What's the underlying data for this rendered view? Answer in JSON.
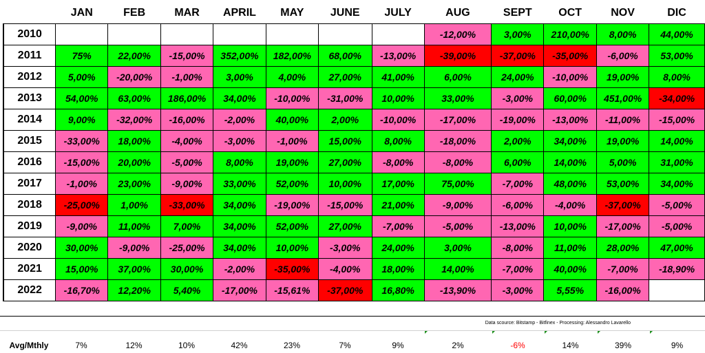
{
  "chart_data": {
    "type": "table",
    "columns": [
      "JAN",
      "FEB",
      "MAR",
      "APRIL",
      "MAY",
      "JUNE",
      "JULY",
      "AUG",
      "SEPT",
      "OCT",
      "NOV",
      "DIC"
    ],
    "rows": [
      {
        "year": "2010",
        "values": [
          "",
          "",
          "",
          "",
          "",
          "",
          "",
          "-12,00%",
          "3,00%",
          "210,00%",
          "8,00%",
          "44,00%"
        ]
      },
      {
        "year": "2011",
        "values": [
          "75%",
          "22,00%",
          "-15,00%",
          "352,00%",
          "182,00%",
          "68,00%",
          "-13,00%",
          "-39,00%",
          "-37,00%",
          "-35,00%",
          "-6,00%",
          "53,00%"
        ]
      },
      {
        "year": "2012",
        "values": [
          "5,00%",
          "-20,00%",
          "-1,00%",
          "3,00%",
          "4,00%",
          "27,00%",
          "41,00%",
          "6,00%",
          "24,00%",
          "-10,00%",
          "19,00%",
          "8,00%"
        ]
      },
      {
        "year": "2013",
        "values": [
          "54,00%",
          "63,00%",
          "186,00%",
          "34,00%",
          "-10,00%",
          "-31,00%",
          "10,00%",
          "33,00%",
          "-3,00%",
          "60,00%",
          "451,00%",
          "-34,00%"
        ]
      },
      {
        "year": "2014",
        "values": [
          "9,00%",
          "-32,00%",
          "-16,00%",
          "-2,00%",
          "40,00%",
          "2,00%",
          "-10,00%",
          "-17,00%",
          "-19,00%",
          "-13,00%",
          "-11,00%",
          "-15,00%"
        ]
      },
      {
        "year": "2015",
        "values": [
          "-33,00%",
          "18,00%",
          "-4,00%",
          "-3,00%",
          "-1,00%",
          "15,00%",
          "8,00%",
          "-18,00%",
          "2,00%",
          "34,00%",
          "19,00%",
          "14,00%"
        ]
      },
      {
        "year": "2016",
        "values": [
          "-15,00%",
          "20,00%",
          "-5,00%",
          "8,00%",
          "19,00%",
          "27,00%",
          "-8,00%",
          "-8,00%",
          "6,00%",
          "14,00%",
          "5,00%",
          "31,00%"
        ]
      },
      {
        "year": "2017",
        "values": [
          "-1,00%",
          "23,00%",
          "-9,00%",
          "33,00%",
          "52,00%",
          "10,00%",
          "17,00%",
          "75,00%",
          "-7,00%",
          "48,00%",
          "53,00%",
          "34,00%"
        ]
      },
      {
        "year": "2018",
        "values": [
          "-25,00%",
          "1,00%",
          "-33,00%",
          "34,00%",
          "-19,00%",
          "-15,00%",
          "21,00%",
          "-9,00%",
          "-6,00%",
          "-4,00%",
          "-37,00%",
          "-5,00%"
        ]
      },
      {
        "year": "2019",
        "values": [
          "-9,00%",
          "11,00%",
          "7,00%",
          "34,00%",
          "52,00%",
          "27,00%",
          "-7,00%",
          "-5,00%",
          "-13,00%",
          "10,00%",
          "-17,00%",
          "-5,00%"
        ]
      },
      {
        "year": "2020",
        "values": [
          "30,00%",
          "-9,00%",
          "-25,00%",
          "34,00%",
          "10,00%",
          "-3,00%",
          "24,00%",
          "3,00%",
          "-8,00%",
          "11,00%",
          "28,00%",
          "47,00%"
        ]
      },
      {
        "year": "2021",
        "values": [
          "15,00%",
          "37,00%",
          "30,00%",
          "-2,00%",
          "-35,00%",
          "-4,00%",
          "18,00%",
          "14,00%",
          "-7,00%",
          "40,00%",
          "-7,00%",
          "-18,90%"
        ]
      },
      {
        "year": "2022",
        "values": [
          "-16,70%",
          "12,20%",
          "5,40%",
          "-17,00%",
          "-15,61%",
          "-37,00%",
          "16,80%",
          "-13,90%",
          "-3,00%",
          "5,55%",
          "-16,00%",
          ""
        ]
      }
    ],
    "strong_negative_cells": [
      [
        1,
        7
      ],
      [
        1,
        8
      ],
      [
        1,
        9
      ],
      [
        3,
        11
      ],
      [
        8,
        0
      ],
      [
        8,
        2
      ],
      [
        8,
        10
      ],
      [
        11,
        4
      ],
      [
        12,
        5
      ]
    ],
    "average_row": {
      "label": "Avg/Mthly",
      "values": [
        "7%",
        "12%",
        "10%",
        "42%",
        "23%",
        "7%",
        "9%",
        "2%",
        "-6%",
        "14%",
        "39%",
        "9%"
      ]
    },
    "source_note": "Data scource: Bitstamp - Bitfinex - Processing: Alessandro Lavarello",
    "colors": {
      "positive": "#00ff00",
      "negative": "#ff66b2",
      "strong_negative": "#ff0000",
      "avg_negative_text": "#ff0000"
    }
  }
}
